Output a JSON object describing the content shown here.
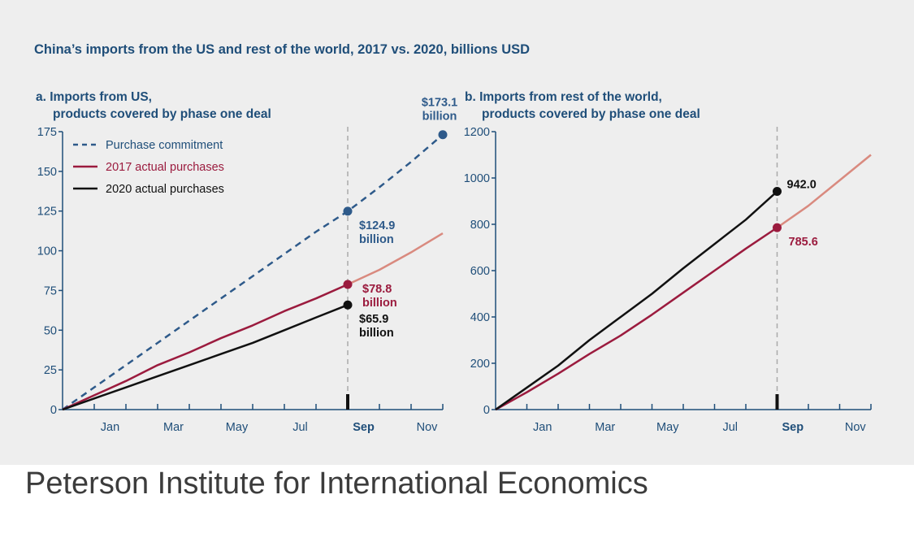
{
  "title": "China’s imports from the US and rest of the world, 2017 vs. 2020, billions USD",
  "source": "Peterson Institute for International Economics",
  "colors": {
    "commitment": "#2e5a8a",
    "actual2017": "#9b1b3e",
    "actual2017_ext": "#d98a7f",
    "actual2020": "#111111",
    "axis": "#1f4e79",
    "marker": "#aaaaaa"
  },
  "chart_data": [
    {
      "id": "a",
      "type": "line",
      "title_line1": "a. Imports from US,",
      "title_line2": "products covered by phase one deal",
      "ylim": [
        0,
        175
      ],
      "yticks": [
        0,
        25,
        50,
        75,
        100,
        125,
        150,
        175
      ],
      "xlim": [
        0,
        12
      ],
      "x_ticks": [
        1,
        2,
        3,
        4,
        5,
        6,
        7,
        8,
        9,
        10,
        11,
        12
      ],
      "x_labels": [
        {
          "x": 1.5,
          "text": "Jan",
          "bold": false
        },
        {
          "x": 3.5,
          "text": "Mar",
          "bold": false
        },
        {
          "x": 5.5,
          "text": "May",
          "bold": false
        },
        {
          "x": 7.5,
          "text": "Jul",
          "bold": false
        },
        {
          "x": 9.5,
          "text": "Sep",
          "bold": true
        },
        {
          "x": 11.5,
          "text": "Nov",
          "bold": false
        }
      ],
      "marker_x": 9,
      "legend": [
        {
          "key": "commitment",
          "text": "Purchase commitment"
        },
        {
          "key": "actual2017",
          "text": "2017 actual purchases"
        },
        {
          "key": "actual2020",
          "text": "2020 actual purchases"
        }
      ],
      "series": [
        {
          "name": "Purchase commitment",
          "key": "commitment",
          "dashed": true,
          "x": [
            0,
            2,
            4,
            6,
            8,
            9,
            10,
            11,
            12
          ],
          "y": [
            0,
            28,
            56,
            84,
            112,
            124.9,
            140,
            156,
            173.1
          ]
        },
        {
          "name": "2017 actual purchases",
          "key": "actual2017",
          "x": [
            0,
            1,
            2,
            3,
            4,
            5,
            6,
            7,
            8,
            9
          ],
          "y": [
            0,
            9,
            18,
            28,
            36,
            45,
            53,
            62,
            70,
            78.8
          ],
          "ext_x": [
            9,
            10,
            11,
            12
          ],
          "ext_y": [
            78.8,
            88,
            99,
            111
          ]
        },
        {
          "name": "2020 actual purchases",
          "key": "actual2020",
          "x": [
            0,
            1,
            2,
            3,
            4,
            5,
            6,
            7,
            8,
            9
          ],
          "y": [
            0,
            7,
            14,
            21,
            28,
            35,
            42,
            50,
            58,
            65.9
          ]
        }
      ],
      "points": [
        {
          "series": "commitment",
          "x": 12,
          "y": 173.1
        },
        {
          "series": "commitment",
          "x": 9,
          "y": 124.9
        },
        {
          "series": "actual2017",
          "x": 9,
          "y": 78.8
        },
        {
          "series": "actual2020",
          "x": 9,
          "y": 65.9
        }
      ],
      "annotations": [
        {
          "key": "commitment",
          "x": 12,
          "y": 173.1,
          "lines": [
            "$173.1",
            "billion"
          ],
          "pos": "above"
        },
        {
          "key": "commitment",
          "x": 9,
          "y": 124.9,
          "lines": [
            "$124.9",
            "billion"
          ],
          "pos": "right-below"
        },
        {
          "key": "actual2017",
          "x": 9,
          "y": 78.8,
          "lines": [
            "$78.8",
            "billion"
          ],
          "pos": "right"
        },
        {
          "key": "actual2020",
          "x": 9,
          "y": 65.9,
          "lines": [
            "$65.9",
            "billion"
          ],
          "pos": "right-below"
        }
      ]
    },
    {
      "id": "b",
      "type": "line",
      "title_line1": "b. Imports from rest of the world,",
      "title_line2": "products covered by phase one deal",
      "ylim": [
        0,
        1200
      ],
      "yticks": [
        0,
        200,
        400,
        600,
        800,
        1000,
        1200
      ],
      "xlim": [
        0,
        12
      ],
      "x_ticks": [
        1,
        2,
        3,
        4,
        5,
        6,
        7,
        8,
        9,
        10,
        11,
        12
      ],
      "x_labels": [
        {
          "x": 1.5,
          "text": "Jan",
          "bold": false
        },
        {
          "x": 3.5,
          "text": "Mar",
          "bold": false
        },
        {
          "x": 5.5,
          "text": "May",
          "bold": false
        },
        {
          "x": 7.5,
          "text": "Jul",
          "bold": false
        },
        {
          "x": 9.5,
          "text": "Sep",
          "bold": true
        },
        {
          "x": 11.5,
          "text": "Nov",
          "bold": false
        }
      ],
      "marker_x": 9,
      "series": [
        {
          "name": "2017 actual purchases",
          "key": "actual2017",
          "x": [
            0,
            1,
            2,
            3,
            4,
            5,
            6,
            7,
            8,
            9
          ],
          "y": [
            0,
            75,
            155,
            240,
            320,
            410,
            505,
            600,
            695,
            785.6
          ],
          "ext_x": [
            9,
            10,
            11,
            12
          ],
          "ext_y": [
            785.6,
            880,
            990,
            1100
          ]
        },
        {
          "name": "2020 actual purchases",
          "key": "actual2020",
          "x": [
            0,
            1,
            2,
            3,
            4,
            5,
            6,
            7,
            8,
            9
          ],
          "y": [
            0,
            95,
            190,
            300,
            400,
            500,
            610,
            715,
            820,
            942
          ]
        }
      ],
      "points": [
        {
          "series": "actual2020",
          "x": 9,
          "y": 942
        },
        {
          "series": "actual2017",
          "x": 9,
          "y": 785.6
        }
      ],
      "annotations": [
        {
          "key": "actual2020",
          "x": 9,
          "y": 942,
          "lines": [
            "942.0"
          ],
          "pos": "right-above"
        },
        {
          "key": "actual2017",
          "x": 9,
          "y": 785.6,
          "lines": [
            "785.6"
          ],
          "pos": "right-below"
        }
      ]
    }
  ]
}
